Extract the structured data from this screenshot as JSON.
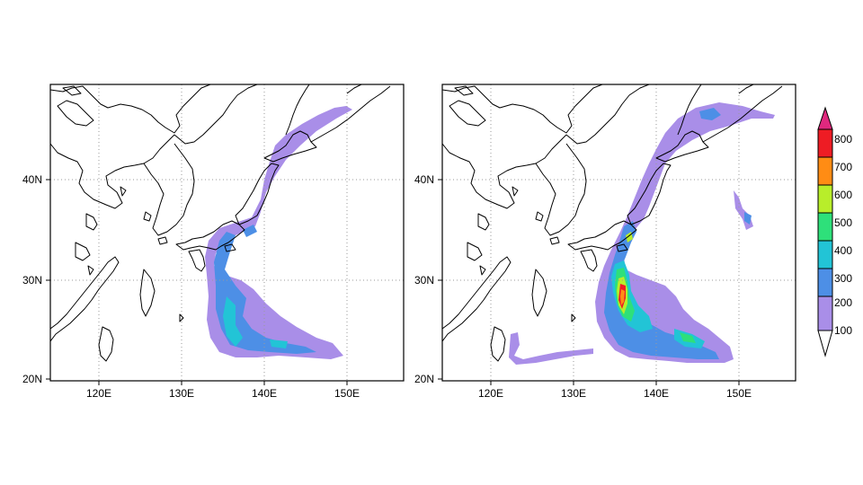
{
  "figure": {
    "panels": [
      {
        "id": "left",
        "x_ticks": [
          "120E",
          "130E",
          "140E",
          "150E"
        ],
        "y_ticks": [
          "20N",
          "30N",
          "40N"
        ],
        "lon_range": [
          114,
          157
        ],
        "lat_range": [
          19.8,
          49.3
        ]
      },
      {
        "id": "right",
        "x_ticks": [
          "120E",
          "130E",
          "140E",
          "150E"
        ],
        "y_ticks": [
          "20N",
          "30N",
          "40N"
        ],
        "lon_range": [
          114,
          157
        ],
        "lat_range": [
          19.8,
          49.3
        ]
      }
    ],
    "colorbar": {
      "levels": [
        "100",
        "200",
        "300",
        "400",
        "500",
        "600",
        "700",
        "800"
      ],
      "colors": [
        "#a98ee8",
        "#4d8fe6",
        "#22c4d6",
        "#2ee07a",
        "#b8ee2a",
        "#ff8c14",
        "#ee1c24",
        "#e0287e"
      ]
    },
    "coastline_color": "#000000",
    "grid": "dotted"
  }
}
